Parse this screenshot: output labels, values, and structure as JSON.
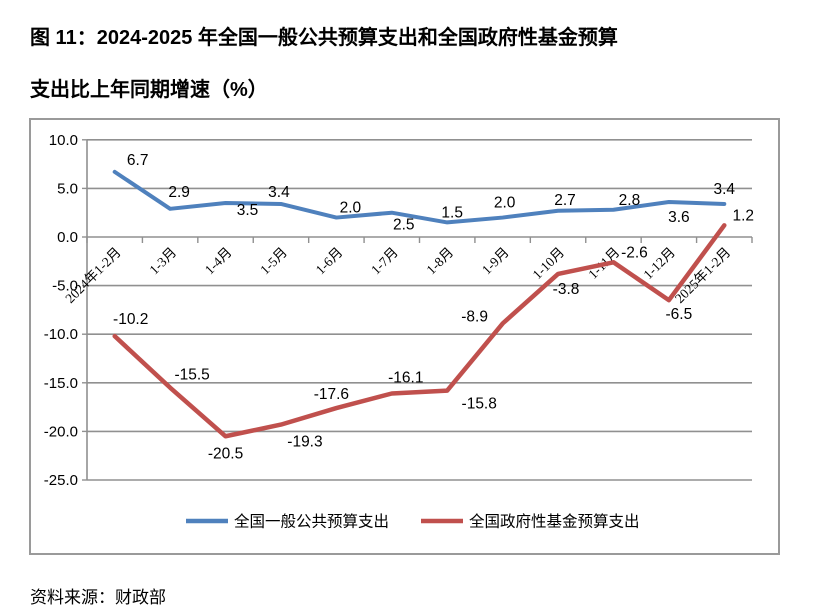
{
  "title": {
    "line1": "图 11：2024-2025 年全国一般公共预算支出和全国政府性基金预算",
    "line2": "支出比上年同期增速（%）"
  },
  "source": "资料来源：财政部",
  "colors": {
    "blue": "#4F81BD",
    "red": "#C0504D",
    "grid": "#909090",
    "axis": "#909090",
    "border": "#9a9a9a",
    "label": "#000000"
  },
  "chart_data": {
    "type": "line",
    "categories": [
      "2024年1-2月",
      "1-3月",
      "1-4月",
      "1-5月",
      "1-6月",
      "1-7月",
      "1-8月",
      "1-9月",
      "1-10月",
      "1-11月",
      "1-12月",
      "2025年1-2月"
    ],
    "series": [
      {
        "name": "全国一般公共预算支出",
        "color_key": "blue",
        "values": [
          6.7,
          2.9,
          3.5,
          3.4,
          2.0,
          2.5,
          1.5,
          2.0,
          2.7,
          2.8,
          3.6,
          3.4
        ]
      },
      {
        "name": "全国政府性基金预算支出",
        "color_key": "red",
        "values": [
          -10.2,
          -15.5,
          -20.5,
          -19.3,
          -17.6,
          -16.1,
          -15.8,
          -8.9,
          -3.8,
          -2.6,
          -6.5,
          1.2
        ]
      }
    ],
    "ylim": [
      -25,
      10
    ],
    "ytick_step": 5,
    "ytick_labels": [
      "10.0",
      "5.0",
      "0.0",
      "-5.0",
      "-10.0",
      "-15.0",
      "-20.0",
      "-25.0"
    ],
    "grid": true,
    "data_labels": true,
    "legend_position": "bottom"
  }
}
